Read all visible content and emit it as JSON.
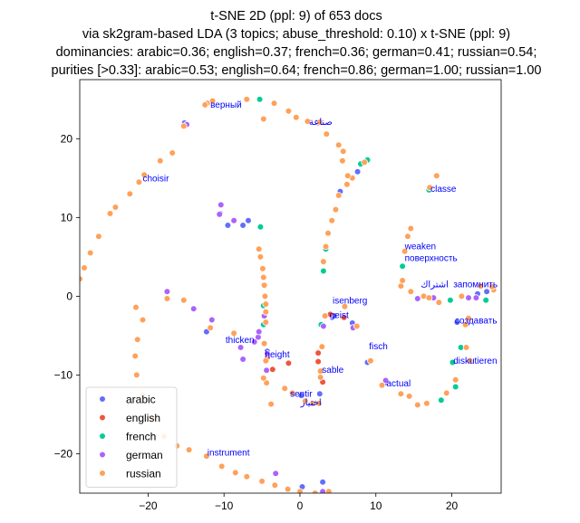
{
  "chart_data": {
    "type": "scatter",
    "title_lines": [
      "t-SNE 2D (ppl: 9) of 653 docs",
      "via sk2gram-based LDA (3 topics; abuse_threshold: 0.10) x t-SNE (ppl: 9)",
      "dominancies: arabic=0.36; english=0.37; french=0.36; german=0.41; russian=0.54;",
      "purities [>0.33]: arabic=0.53; english=0.64; french=0.86; german=1.00; russian=1.00"
    ],
    "xlabel": "",
    "ylabel": "",
    "xlim": [
      -29,
      26.5
    ],
    "ylim": [
      -25,
      27.5
    ],
    "xticks": [
      -20,
      -10,
      0,
      10,
      20
    ],
    "yticks": [
      -20,
      -10,
      0,
      10,
      20
    ],
    "grid": false,
    "legend_position": "lower-left",
    "series": [
      {
        "name": "arabic",
        "color": "#636efa",
        "points": [
          [
            -10.5,
            10.5
          ],
          [
            -9.5,
            9
          ],
          [
            -7.5,
            9
          ],
          [
            -6.8,
            9.6
          ],
          [
            -12.3,
            -4.5
          ],
          [
            -4.3,
            -7
          ],
          [
            2.6,
            -12.4
          ],
          [
            0.2,
            -12.6
          ],
          [
            4.5,
            -2.5
          ],
          [
            6.9,
            -3.4
          ],
          [
            8.9,
            -8.4
          ],
          [
            11.2,
            -11
          ],
          [
            20.7,
            -3.3
          ],
          [
            23.4,
            0.3
          ],
          [
            24.6,
            0.6
          ],
          [
            2.5,
            22
          ],
          [
            -15.2,
            22
          ],
          [
            3,
            -23.6
          ],
          [
            0.3,
            -24.2
          ],
          [
            7.6,
            15.8
          ],
          [
            5.3,
            13.3
          ]
        ]
      },
      {
        "name": "english",
        "color": "#ef553b",
        "points": [
          [
            -1.5,
            -8.5
          ],
          [
            -4.3,
            -7.8
          ],
          [
            -3.6,
            -9.3
          ],
          [
            2.4,
            -7.2
          ],
          [
            2.4,
            -8.3
          ],
          [
            4,
            -2.3
          ],
          [
            5.8,
            -2.7
          ],
          [
            3,
            -10.9
          ]
        ]
      },
      {
        "name": "french",
        "color": "#00cc96",
        "points": [
          [
            -5.3,
            25
          ],
          [
            -5.2,
            8.8
          ],
          [
            -4.8,
            -3.6
          ],
          [
            2.8,
            -3.6
          ],
          [
            3.1,
            3.2
          ],
          [
            3.4,
            6
          ],
          [
            8,
            16.8
          ],
          [
            8.9,
            17.3
          ],
          [
            17,
            13.5
          ],
          [
            13.5,
            3.8
          ],
          [
            19.8,
            -0.5
          ],
          [
            21.2,
            -6.5
          ],
          [
            20.1,
            -8.4
          ],
          [
            18.6,
            -13.2
          ],
          [
            20.5,
            -11.5
          ],
          [
            24.5,
            -0.5
          ],
          [
            -4.8,
            -1.2
          ]
        ]
      },
      {
        "name": "german",
        "color": "#ab63fa",
        "points": [
          [
            -14.9,
            21.8
          ],
          [
            -10.4,
            11.6
          ],
          [
            -10.6,
            10.4
          ],
          [
            -8.7,
            9.6
          ],
          [
            -17.5,
            0.6
          ],
          [
            -14,
            -1.6
          ],
          [
            -11.6,
            -3
          ],
          [
            -6,
            -5.8
          ],
          [
            -7.8,
            -6.5
          ],
          [
            -7.5,
            -8
          ],
          [
            -5.5,
            -5.2
          ],
          [
            -4.3,
            -7.3
          ],
          [
            -4.4,
            -9.4
          ],
          [
            3.1,
            -3.8
          ],
          [
            7,
            -4
          ],
          [
            15.5,
            -0.3
          ],
          [
            17.6,
            -0.2
          ],
          [
            22.2,
            -0.2
          ],
          [
            23.2,
            -0.2
          ],
          [
            11.3,
            -10.7
          ],
          [
            3,
            -24.8
          ],
          [
            -3.2,
            -22.5
          ],
          [
            -4.7,
            -2.5
          ],
          [
            -5.4,
            -4.5
          ]
        ]
      },
      {
        "name": "russian",
        "color": "#ffa15a",
        "points": [
          [
            -12.2,
            24.5
          ],
          [
            -11.5,
            24.8
          ],
          [
            -7,
            25
          ],
          [
            -3.4,
            24.5
          ],
          [
            -1.5,
            23.5
          ],
          [
            -0.5,
            22.7
          ],
          [
            1,
            22.2
          ],
          [
            3.5,
            20.6
          ],
          [
            5.1,
            19.2
          ],
          [
            5.7,
            18.4
          ],
          [
            5.6,
            17.2
          ],
          [
            6.9,
            15
          ],
          [
            6.2,
            14.2
          ],
          [
            5.1,
            12.8
          ],
          [
            4.7,
            11
          ],
          [
            4.2,
            9.6
          ],
          [
            3.7,
            8
          ],
          [
            3.4,
            6.3
          ],
          [
            3.1,
            4.4
          ],
          [
            -4.8,
            22.5
          ],
          [
            -15.3,
            21.6
          ],
          [
            -16.8,
            18.2
          ],
          [
            -18.4,
            17.2
          ],
          [
            -20.5,
            15.4
          ],
          [
            -21.2,
            14.5
          ],
          [
            -22.4,
            13
          ],
          [
            -24.3,
            11.3
          ],
          [
            -25,
            10.5
          ],
          [
            -26.5,
            7.6
          ],
          [
            -27.6,
            5.5
          ],
          [
            -28.4,
            3.6
          ],
          [
            -29,
            2.2
          ],
          [
            -20.7,
            -3
          ],
          [
            -21.4,
            -5.5
          ],
          [
            -21.7,
            -7.6
          ],
          [
            -21.5,
            -10
          ],
          [
            -20.7,
            -12.5
          ],
          [
            -19.5,
            -15.5
          ],
          [
            -17.9,
            -17.8
          ],
          [
            -16.2,
            -19
          ],
          [
            -14.6,
            -19.5
          ],
          [
            -12.3,
            -20.3
          ],
          [
            -10.3,
            -21.6
          ],
          [
            -8.5,
            -22.4
          ],
          [
            -7,
            -22.9
          ],
          [
            -5,
            -23.5
          ],
          [
            -3.3,
            -24
          ],
          [
            -1.6,
            -24.5
          ],
          [
            0,
            -24.8
          ],
          [
            2,
            -25
          ],
          [
            -11.8,
            -4
          ],
          [
            -8.7,
            -4.7
          ],
          [
            -17.5,
            -0.3
          ],
          [
            -15.3,
            -0.5
          ],
          [
            -21.6,
            -1.4
          ],
          [
            -5.4,
            6
          ],
          [
            -5.2,
            5
          ],
          [
            -4.9,
            3.5
          ],
          [
            -4.8,
            2.4
          ],
          [
            -4.7,
            1.4
          ],
          [
            -4.6,
            0
          ],
          [
            -4.5,
            -1
          ],
          [
            -4.5,
            -2
          ],
          [
            -4.5,
            -3.3
          ],
          [
            -4.7,
            -6
          ],
          [
            -4.5,
            -8.2
          ],
          [
            -4.4,
            -11
          ],
          [
            -2,
            -11.7
          ],
          [
            -1,
            -12.3
          ],
          [
            0.7,
            -13.3
          ],
          [
            1.7,
            -13.6
          ],
          [
            2.5,
            -13.6
          ],
          [
            2.7,
            -9.5
          ],
          [
            2.7,
            -10.3
          ],
          [
            2.9,
            -6.4
          ],
          [
            3.3,
            -2.5
          ],
          [
            5.9,
            -1.3
          ],
          [
            7.5,
            -3.8
          ],
          [
            9.3,
            -8.2
          ],
          [
            10.8,
            -11.3
          ],
          [
            13.3,
            -12.4
          ],
          [
            14.4,
            -12.7
          ],
          [
            15.5,
            -13.8
          ],
          [
            16.7,
            -13.6
          ],
          [
            19.3,
            -12.3
          ],
          [
            20.5,
            -10.6
          ],
          [
            22.4,
            -8.2
          ],
          [
            21.9,
            -6.5
          ],
          [
            22.2,
            -2.8
          ],
          [
            21.8,
            -3.6
          ],
          [
            25.5,
            0.8
          ],
          [
            25.3,
            1.2
          ],
          [
            23.8,
            1.3
          ],
          [
            13.3,
            1.3
          ],
          [
            14.6,
            0.6
          ],
          [
            16.3,
            0
          ],
          [
            18.3,
            -0.8
          ],
          [
            17,
            -0.2
          ],
          [
            13.5,
            2
          ],
          [
            13.8,
            5.7
          ],
          [
            14.2,
            7.6
          ],
          [
            14.6,
            8.6
          ],
          [
            17.1,
            13.8
          ],
          [
            18,
            15.3
          ],
          [
            6.3,
            15.3
          ],
          [
            8.5,
            17
          ],
          [
            -12.5,
            24.3
          ],
          [
            2.6,
            22.1
          ],
          [
            21.3,
            0
          ],
          [
            -4.8,
            -10.4
          ],
          [
            -3.8,
            -13.7
          ],
          [
            3.8,
            -24.8
          ]
        ]
      }
    ],
    "annotations": [
      {
        "text": "верный",
        "x": -11.8,
        "y": 24.3
      },
      {
        "text": "صناعة",
        "x": 1.2,
        "y": 22.1
      },
      {
        "text": "choisir",
        "x": -20.7,
        "y": 14.9
      },
      {
        "text": "classe",
        "x": 17.2,
        "y": 13.6
      },
      {
        "text": "weaken",
        "x": 13.8,
        "y": 6.3
      },
      {
        "text": "поверхность",
        "x": 13.8,
        "y": 4.8
      },
      {
        "text": "اشتراك",
        "x": 15.9,
        "y": 1.5
      },
      {
        "text": "запомнить",
        "x": 20.2,
        "y": 1.5
      },
      {
        "text": "isenberg",
        "x": 4.3,
        "y": -0.6
      },
      {
        "text": "geist",
        "x": 3.9,
        "y": -2.4
      },
      {
        "text": "создавать",
        "x": 20.4,
        "y": -3.1
      },
      {
        "text": "thicken",
        "x": -9.8,
        "y": -5.6
      },
      {
        "text": "fisch",
        "x": 9.1,
        "y": -6.4
      },
      {
        "text": "height",
        "x": -4.6,
        "y": -7.4
      },
      {
        "text": "diskutieren",
        "x": 20.2,
        "y": -8.2
      },
      {
        "text": "sable",
        "x": 2.9,
        "y": -9.4
      },
      {
        "text": "actual",
        "x": 11.4,
        "y": -11.1
      },
      {
        "text": "sentir",
        "x": -1.3,
        "y": -12.4
      },
      {
        "text": "اختيار",
        "x": 0.1,
        "y": -13.5
      },
      {
        "text": "instrument",
        "x": -12.2,
        "y": -19.9
      }
    ]
  }
}
